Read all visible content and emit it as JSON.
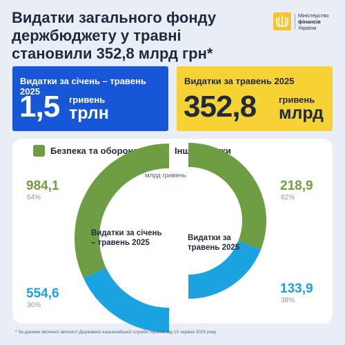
{
  "header": {
    "title": "Видатки загального фонду держбюджету у травні становили 352,8 млрд грн*",
    "logo": {
      "line1": "Міністерство",
      "line2": "фінансів",
      "line3": "України"
    }
  },
  "cards": [
    {
      "caption": "Видатки за січень – травень 2025",
      "value": "1,5",
      "unit_small": "гривень",
      "unit_big": "трлн",
      "color": "#1756d6"
    },
    {
      "caption": "Видатки за травень 2025",
      "value": "352,8",
      "unit_small": "гривень",
      "unit_big": "млрд",
      "color": "#f6d234"
    }
  ],
  "chart_data": [
    {
      "type": "pie",
      "title": "Видатки за січень – травень 2025",
      "unit": "млрд гривень",
      "categories": [
        "Безпека та оборона",
        "Інші видатки"
      ],
      "values": [
        984.1,
        554.6
      ],
      "value_labels": [
        "984,1",
        "554,6"
      ],
      "percent_labels": [
        "64%",
        "36%"
      ],
      "colors": [
        "#6f9d43",
        "#1aa3e0"
      ],
      "legend": "top"
    },
    {
      "type": "pie",
      "title": "Видатки за травень 2025",
      "unit": "млрд гривень",
      "categories": [
        "Безпека та оборона",
        "Інші видатки"
      ],
      "values": [
        218.9,
        133.9
      ],
      "value_labels": [
        "218,9",
        "133,9"
      ],
      "percent_labels": [
        "62%",
        "38%"
      ],
      "colors": [
        "#6f9d43",
        "#1aa3e0"
      ],
      "legend": "top"
    }
  ],
  "footnote": "* За даними місячної звітності Державної казначейської служби України від 13 червня 2025 року"
}
